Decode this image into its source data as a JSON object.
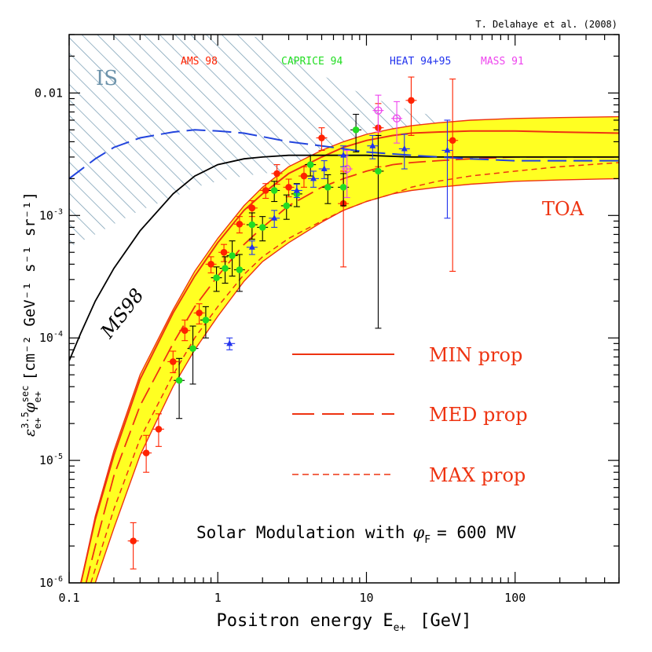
{
  "chart_data": {
    "type": "scatter",
    "credit": "T. Delahaye et al. (2008)",
    "title": "",
    "xlabel": "Positron energy E",
    "xlabel_sub": "e+",
    "xlabel_unit": "[GeV]",
    "ylabel_main": "ε",
    "ylabel_sup": "3.5",
    "ylabel_sub": "e+",
    "ylabel_phi": "φ",
    "ylabel_phi_sup": "sec",
    "ylabel_phi_sub": "e+",
    "ylabel_unit": "[cm⁻² GeV⁻¹ s⁻¹ sr⁻¹]",
    "xscale": "log",
    "yscale": "log",
    "xlim": [
      0.1,
      500
    ],
    "ylim": [
      1e-06,
      0.03
    ],
    "x_ticks": [
      {
        "value": 0.1,
        "label": "0.1"
      },
      {
        "value": 1,
        "label": "1"
      },
      {
        "value": 10,
        "label": "10"
      },
      {
        "value": 100,
        "label": "100"
      }
    ],
    "y_ticks": [
      {
        "value": 1e-06,
        "base": "10",
        "exp": "-6"
      },
      {
        "value": 1e-05,
        "base": "10",
        "exp": "-5"
      },
      {
        "value": 0.0001,
        "base": "10",
        "exp": "-4"
      },
      {
        "value": 0.001,
        "base": "10",
        "exp": "-3"
      },
      {
        "value": 0.01,
        "label": "0.01"
      }
    ],
    "experiments": [
      {
        "name": "AMS 98",
        "color": "#ff2200",
        "marker": "circle"
      },
      {
        "name": "CAPRICE 94",
        "color": "#22dd22",
        "marker": "circle"
      },
      {
        "name": "HEAT 94+95",
        "color": "#2233ee",
        "marker": "triangle"
      },
      {
        "name": "MASS 91",
        "color": "#ee44ee",
        "marker": "open-circle"
      }
    ],
    "annotations": {
      "is": "IS",
      "toa": "TOA",
      "ms98": "MS98",
      "solar": "Solar Modulation with",
      "phi_symbol": "φ",
      "phi_sub": "F",
      "phi_value": "= 600 MV"
    },
    "legend": [
      {
        "label": "MIN prop",
        "dash": "solid"
      },
      {
        "label": "MED prop",
        "dash": "long-dash"
      },
      {
        "label": "MAX prop",
        "dash": "short-dash"
      }
    ],
    "band": {
      "upper": [
        [
          0.12,
          1e-06
        ],
        [
          0.15,
          3.5e-06
        ],
        [
          0.2,
          1.2e-05
        ],
        [
          0.3,
          5e-05
        ],
        [
          0.5,
          0.00017
        ],
        [
          0.7,
          0.00035
        ],
        [
          1,
          0.00065
        ],
        [
          1.5,
          0.0012
        ],
        [
          2,
          0.0017
        ],
        [
          3,
          0.0025
        ],
        [
          5,
          0.0034
        ],
        [
          7,
          0.004
        ],
        [
          10,
          0.0046
        ],
        [
          15,
          0.0051
        ],
        [
          20,
          0.0054
        ],
        [
          30,
          0.0057
        ],
        [
          50,
          0.006
        ],
        [
          100,
          0.0062
        ],
        [
          200,
          0.0063
        ],
        [
          500,
          0.0064
        ]
      ],
      "lower": [
        [
          0.15,
          1e-06
        ],
        [
          0.2,
          2.8e-06
        ],
        [
          0.3,
          1.1e-05
        ],
        [
          0.5,
          4e-05
        ],
        [
          0.7,
          8e-05
        ],
        [
          1,
          0.00015
        ],
        [
          1.5,
          0.00029
        ],
        [
          2,
          0.00042
        ],
        [
          3,
          0.0006
        ],
        [
          5,
          0.00088
        ],
        [
          7,
          0.0011
        ],
        [
          10,
          0.0013
        ],
        [
          15,
          0.0015
        ],
        [
          20,
          0.0016
        ],
        [
          30,
          0.0017
        ],
        [
          50,
          0.0018
        ],
        [
          100,
          0.0019
        ],
        [
          200,
          0.00195
        ],
        [
          500,
          0.002
        ]
      ]
    },
    "min_prop": [
      [
        0.12,
        1e-06
      ],
      [
        0.15,
        3.3e-06
      ],
      [
        0.2,
        1.1e-05
      ],
      [
        0.3,
        4.6e-05
      ],
      [
        0.5,
        0.00016
      ],
      [
        0.7,
        0.00032
      ],
      [
        1,
        0.0006
      ],
      [
        1.5,
        0.0011
      ],
      [
        2,
        0.0015
      ],
      [
        3,
        0.0022
      ],
      [
        5,
        0.003
      ],
      [
        7,
        0.0036
      ],
      [
        10,
        0.0041
      ],
      [
        15,
        0.0045
      ],
      [
        20,
        0.0047
      ],
      [
        30,
        0.0048
      ],
      [
        50,
        0.0049
      ],
      [
        100,
        0.0049
      ],
      [
        200,
        0.0048
      ],
      [
        500,
        0.0047
      ]
    ],
    "med_prop": [
      [
        0.13,
        1e-06
      ],
      [
        0.15,
        2e-06
      ],
      [
        0.2,
        7.5e-06
      ],
      [
        0.3,
        2.8e-05
      ],
      [
        0.5,
        9e-05
      ],
      [
        0.7,
        0.00018
      ],
      [
        1,
        0.00032
      ],
      [
        1.5,
        0.00058
      ],
      [
        2,
        0.0008
      ],
      [
        3,
        0.0012
      ],
      [
        5,
        0.0017
      ],
      [
        7,
        0.002
      ],
      [
        10,
        0.0023
      ],
      [
        15,
        0.0026
      ],
      [
        20,
        0.0027
      ],
      [
        30,
        0.0028
      ],
      [
        50,
        0.0029
      ],
      [
        100,
        0.003
      ],
      [
        200,
        0.003
      ],
      [
        500,
        0.003
      ]
    ],
    "max_prop": [
      [
        0.14,
        1e-06
      ],
      [
        0.2,
        4e-06
      ],
      [
        0.3,
        1.5e-05
      ],
      [
        0.5,
        5e-05
      ],
      [
        0.7,
        0.0001
      ],
      [
        1,
        0.00018
      ],
      [
        1.5,
        0.00033
      ],
      [
        2,
        0.00046
      ],
      [
        3,
        0.00065
      ],
      [
        5,
        0.0009
      ],
      [
        7,
        0.0011
      ],
      [
        10,
        0.0013
      ],
      [
        15,
        0.0015
      ],
      [
        20,
        0.0017
      ],
      [
        30,
        0.0019
      ],
      [
        50,
        0.0021
      ],
      [
        100,
        0.0023
      ],
      [
        200,
        0.0025
      ],
      [
        500,
        0.0027
      ]
    ],
    "ms98_curve": [
      [
        0.1,
        6.5e-05
      ],
      [
        0.12,
        0.00011
      ],
      [
        0.15,
        0.0002
      ],
      [
        0.2,
        0.00037
      ],
      [
        0.3,
        0.00075
      ],
      [
        0.5,
        0.0015
      ],
      [
        0.7,
        0.0021
      ],
      [
        1,
        0.0026
      ],
      [
        1.5,
        0.0029
      ],
      [
        2,
        0.003
      ],
      [
        3,
        0.0031
      ],
      [
        5,
        0.0031
      ],
      [
        10,
        0.0031
      ],
      [
        20,
        0.003
      ],
      [
        50,
        0.003
      ],
      [
        100,
        0.003
      ],
      [
        200,
        0.003
      ],
      [
        500,
        0.003
      ]
    ],
    "is_curve": [
      [
        0.1,
        0.002
      ],
      [
        0.15,
        0.0029
      ],
      [
        0.2,
        0.0036
      ],
      [
        0.3,
        0.0043
      ],
      [
        0.5,
        0.0048
      ],
      [
        0.7,
        0.005
      ],
      [
        1,
        0.0049
      ],
      [
        1.5,
        0.0047
      ],
      [
        2,
        0.0044
      ],
      [
        3,
        0.004
      ],
      [
        5,
        0.0037
      ],
      [
        7,
        0.0035
      ],
      [
        10,
        0.0033
      ],
      [
        20,
        0.0031
      ],
      [
        50,
        0.0029
      ],
      [
        100,
        0.0028
      ],
      [
        200,
        0.0028
      ],
      [
        500,
        0.0028
      ]
    ],
    "is_region": {
      "upper": [
        [
          0.1,
          0.03
        ],
        [
          0.15,
          0.03
        ],
        [
          0.2,
          0.03
        ],
        [
          0.3,
          0.03
        ],
        [
          0.5,
          0.03
        ],
        [
          0.7,
          0.03
        ],
        [
          1,
          0.03
        ],
        [
          1.5,
          0.03
        ],
        [
          2,
          0.028
        ],
        [
          3,
          0.02
        ],
        [
          5,
          0.014
        ],
        [
          7,
          0.0115
        ],
        [
          10,
          0.0095
        ],
        [
          15,
          0.008
        ],
        [
          20,
          0.0072
        ],
        [
          30,
          0.0064
        ]
      ],
      "lower": [
        [
          0.1,
          0.00055
        ],
        [
          0.15,
          0.0007
        ],
        [
          0.2,
          0.00085
        ],
        [
          0.3,
          0.0011
        ],
        [
          0.5,
          0.0014
        ],
        [
          0.7,
          0.0017
        ],
        [
          1,
          0.0019
        ],
        [
          1.5,
          0.0021
        ],
        [
          2,
          0.0022
        ],
        [
          3,
          0.0023
        ],
        [
          5,
          0.0024
        ],
        [
          7,
          0.0025
        ],
        [
          10,
          0.0026
        ],
        [
          15,
          0.0027
        ],
        [
          20,
          0.0028
        ],
        [
          30,
          0.0029
        ]
      ]
    },
    "series": [
      {
        "name": "AMS 98",
        "color": "#ff2200",
        "marker": "circle",
        "points": [
          [
            0.27,
            2.2e-06,
            1.3e-06,
            3.1e-06
          ],
          [
            0.33,
            1.15e-05,
            8e-06,
            1.6e-05
          ],
          [
            0.4,
            1.8e-05,
            1.3e-05,
            2.4e-05
          ],
          [
            0.5,
            6.4e-05,
            5.2e-05,
            7.8e-05
          ],
          [
            0.6,
            0.000115,
            9.5e-05,
            0.00014
          ],
          [
            0.75,
            0.00016,
            0.00013,
            0.00019
          ],
          [
            0.9,
            0.0004,
            0.00034,
            0.00046
          ],
          [
            1.1,
            0.0005,
            0.00042,
            0.00058
          ],
          [
            1.4,
            0.00085,
            0.00072,
            0.00098
          ],
          [
            1.7,
            0.00115,
            0.00098,
            0.00132
          ],
          [
            2.1,
            0.0016,
            0.00138,
            0.00182
          ],
          [
            2.5,
            0.0022,
            0.0018,
            0.0026
          ],
          [
            3.0,
            0.0017,
            0.00142,
            0.00198
          ],
          [
            3.8,
            0.0021,
            0.0017,
            0.0025
          ],
          [
            5.0,
            0.0043,
            0.0034,
            0.0052
          ],
          [
            7.0,
            0.00125,
            0.00038,
            0.0023
          ],
          [
            12,
            0.0052,
            0.0025,
            0.0082
          ],
          [
            20,
            0.0087,
            0.0045,
            0.0135
          ],
          [
            38,
            0.0041,
            0.00035,
            0.013
          ]
        ]
      },
      {
        "name": "CAPRICE 94",
        "color": "#22dd22",
        "marker": "circle",
        "points": [
          [
            0.55,
            4.5e-05,
            2.2e-05,
            6.8e-05
          ],
          [
            0.68,
            8.2e-05,
            4.2e-05,
            0.000125
          ],
          [
            0.83,
            0.00014,
            0.0001,
            0.00018
          ],
          [
            0.98,
            0.00031,
            0.00024,
            0.00038
          ],
          [
            1.12,
            0.00037,
            0.00028,
            0.00046
          ],
          [
            1.25,
            0.00047,
            0.00032,
            0.00062
          ],
          [
            1.4,
            0.00036,
            0.00024,
            0.00048
          ],
          [
            1.7,
            0.00084,
            0.00064,
            0.00105
          ],
          [
            2.0,
            0.0008,
            0.00062,
            0.00098
          ],
          [
            2.4,
            0.0016,
            0.0013,
            0.0019
          ],
          [
            2.9,
            0.0012,
            0.00093,
            0.00147
          ],
          [
            3.4,
            0.0015,
            0.00118,
            0.00182
          ],
          [
            4.2,
            0.0026,
            0.0021,
            0.0031
          ],
          [
            5.5,
            0.0017,
            0.00125,
            0.00215
          ],
          [
            7.0,
            0.0017,
            0.0012,
            0.0022
          ],
          [
            8.5,
            0.005,
            0.0033,
            0.0067
          ],
          [
            12,
            0.0023,
            0.00012,
            0.0045
          ]
        ]
      },
      {
        "name": "HEAT 94+95",
        "color": "#2233ee",
        "marker": "triangle",
        "points": [
          [
            1.2,
            9e-05,
            8e-05,
            0.0001
          ],
          [
            1.7,
            0.00055,
            0.00048,
            0.00062
          ],
          [
            2.4,
            0.00095,
            0.0008,
            0.0011
          ],
          [
            3.4,
            0.0016,
            0.0014,
            0.0018
          ],
          [
            4.4,
            0.002,
            0.0017,
            0.0023
          ],
          [
            5.2,
            0.0024,
            0.002,
            0.0028
          ],
          [
            7.0,
            0.0031,
            0.0025,
            0.0037
          ],
          [
            11,
            0.0037,
            0.0029,
            0.0045
          ],
          [
            18,
            0.0035,
            0.0024,
            0.0046
          ],
          [
            35,
            0.0034,
            0.00095,
            0.006
          ]
        ]
      },
      {
        "name": "MASS 91",
        "color": "#ee44ee",
        "marker": "open-circle",
        "points": [
          [
            7.4,
            0.0024,
            0.0014,
            0.0034
          ],
          [
            12,
            0.0072,
            0.0048,
            0.0096
          ],
          [
            16,
            0.0062,
            0.0039,
            0.0085
          ]
        ]
      }
    ]
  }
}
